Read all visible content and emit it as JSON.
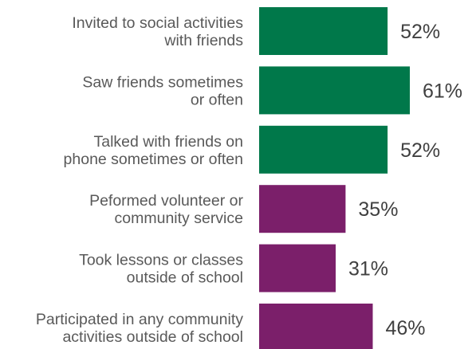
{
  "chart_data": {
    "type": "bar",
    "orientation": "horizontal",
    "categories": [
      [
        "Invited to social activities",
        "with friends"
      ],
      [
        "Saw friends sometimes",
        "or often"
      ],
      [
        "Talked with friends on",
        "phone sometimes or often"
      ],
      [
        "Peformed volunteer or",
        "community service"
      ],
      [
        "Took lessons or classes",
        "outside of school"
      ],
      [
        "Participated in any community",
        "activities outside of school"
      ]
    ],
    "values": [
      52,
      61,
      52,
      35,
      31,
      46
    ],
    "value_labels": [
      "52%",
      "61%",
      "52%",
      "35%",
      "31%",
      "46%"
    ],
    "bar_colors": [
      "#00784A",
      "#00784A",
      "#00784A",
      "#7B1F6A",
      "#7B1F6A",
      "#7B1F6A"
    ],
    "xlim": [
      0,
      61
    ],
    "grid": false,
    "legend": "none",
    "title": "",
    "xlabel": "",
    "ylabel": ""
  }
}
